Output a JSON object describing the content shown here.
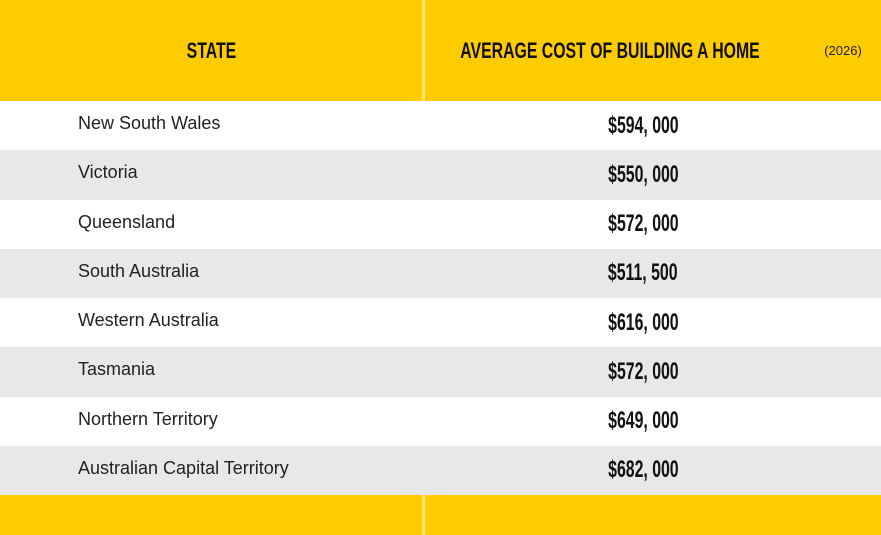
{
  "table": {
    "header": [
      "STATE",
      "AVERAGE COST OF BUILDING A HOME"
    ],
    "header_note": "(2026)",
    "rows": [
      [
        "New South Wales",
        "$594, 000"
      ],
      [
        "Victoria",
        "$550, 000"
      ],
      [
        "Queensland",
        "$572, 000"
      ],
      [
        "South Australia",
        "$511, 500"
      ],
      [
        "Western Australia",
        "$616, 000"
      ],
      [
        "Tasmania",
        "$572, 000"
      ],
      [
        "Northern Territory",
        "$649, 000"
      ],
      [
        "Australian Capital Territory",
        "$682, 000"
      ]
    ]
  }
}
